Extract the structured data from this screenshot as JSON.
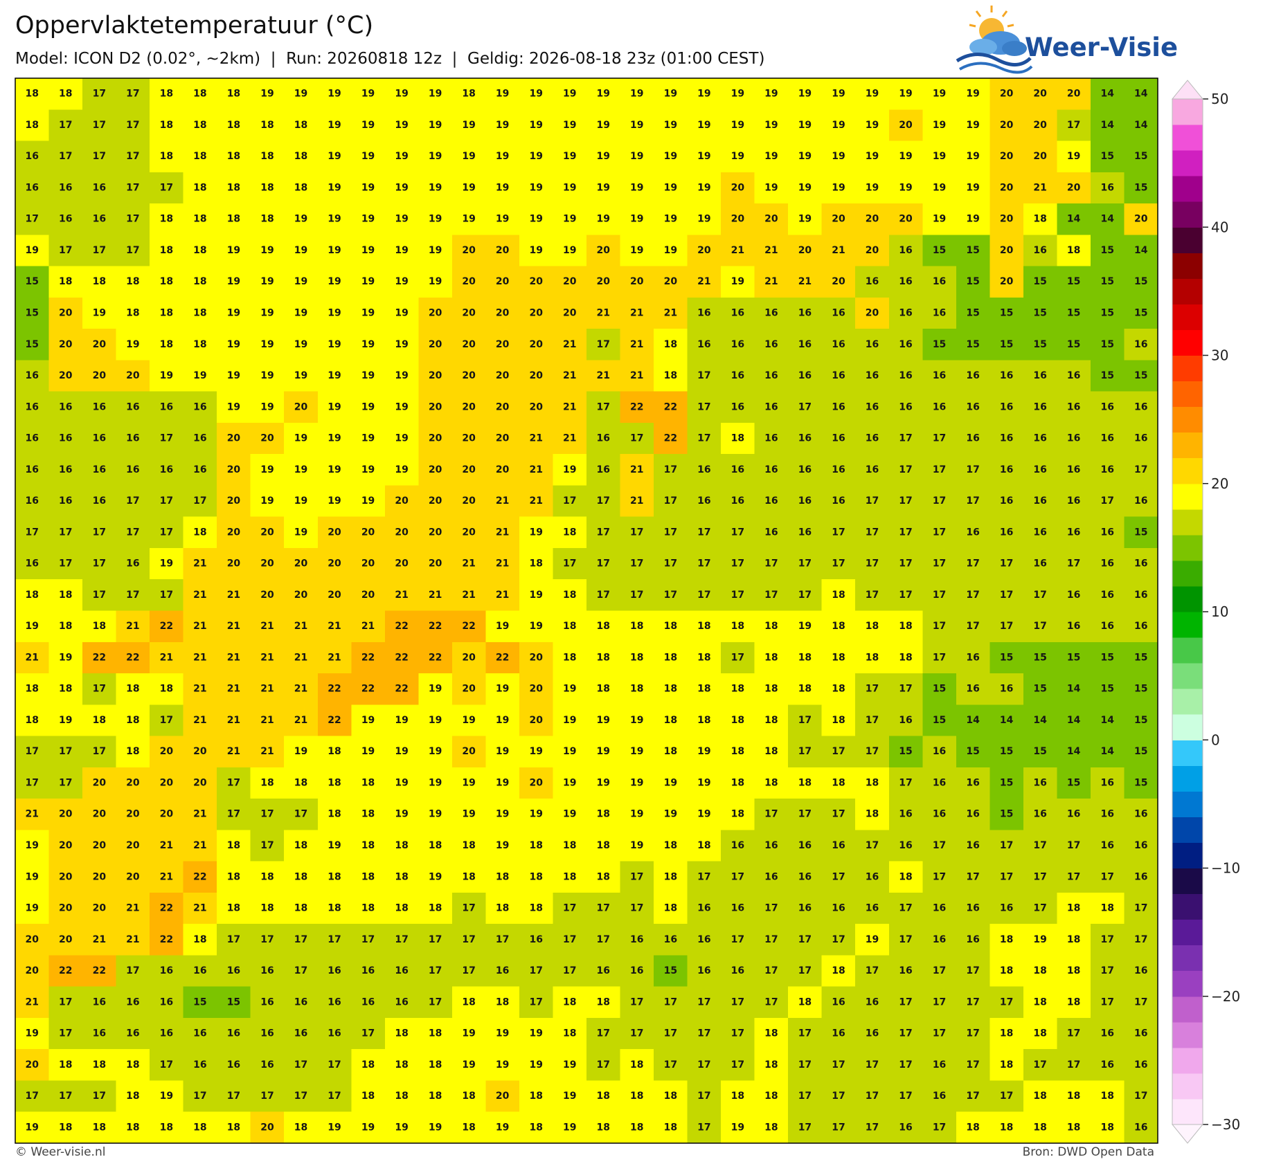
{
  "header": {
    "title": "Oppervlaktetemperatuur (°C)",
    "subtitle": "Model: ICON D2 (0.02°, ~2km)  |  Run: 20260818 12z  |  Geldig: 2026-08-18 23z (01:00 CEST)",
    "logo": "Weer-Visie",
    "credit": "© Weer-visie.nl",
    "source": "Bron: DWD Open Data"
  },
  "map": {
    "rows": [
      [
        18,
        18,
        17,
        17,
        18,
        18,
        18,
        19,
        19,
        19,
        19,
        19,
        19,
        18,
        19,
        19,
        19,
        19,
        19,
        19,
        19,
        19,
        19,
        19,
        19,
        19,
        19,
        19,
        19,
        20,
        20,
        20,
        14,
        14
      ],
      [
        18,
        17,
        17,
        17,
        18,
        18,
        18,
        18,
        18,
        19,
        19,
        19,
        19,
        19,
        19,
        19,
        19,
        19,
        19,
        19,
        19,
        19,
        19,
        19,
        19,
        19,
        20,
        19,
        19,
        20,
        20,
        17,
        14,
        14
      ],
      [
        16,
        17,
        17,
        17,
        18,
        18,
        18,
        18,
        18,
        19,
        19,
        19,
        19,
        19,
        19,
        19,
        19,
        19,
        19,
        19,
        19,
        19,
        19,
        19,
        19,
        19,
        19,
        19,
        19,
        20,
        20,
        19,
        15,
        15
      ],
      [
        16,
        16,
        16,
        17,
        17,
        18,
        18,
        18,
        18,
        19,
        19,
        19,
        19,
        19,
        19,
        19,
        19,
        19,
        19,
        19,
        19,
        20,
        19,
        19,
        19,
        19,
        19,
        19,
        19,
        20,
        21,
        20,
        16,
        15
      ],
      [
        17,
        16,
        16,
        17,
        18,
        18,
        18,
        18,
        19,
        19,
        19,
        19,
        19,
        19,
        19,
        19,
        19,
        19,
        19,
        19,
        19,
        20,
        20,
        19,
        20,
        20,
        20,
        19,
        19,
        20,
        18,
        14,
        14,
        20
      ],
      [
        19,
        17,
        17,
        17,
        18,
        18,
        19,
        19,
        19,
        19,
        19,
        19,
        19,
        20,
        20,
        19,
        19,
        20,
        19,
        19,
        20,
        21,
        21,
        20,
        21,
        20,
        16,
        15,
        15,
        20,
        16,
        18,
        15,
        14
      ],
      [
        15,
        18,
        18,
        18,
        18,
        18,
        19,
        19,
        19,
        19,
        19,
        19,
        19,
        20,
        20,
        20,
        20,
        20,
        20,
        20,
        21,
        19,
        21,
        21,
        20,
        16,
        16,
        16,
        15,
        20,
        15,
        15,
        15,
        15
      ],
      [
        15,
        20,
        19,
        18,
        18,
        18,
        19,
        19,
        19,
        19,
        19,
        19,
        20,
        20,
        20,
        20,
        20,
        21,
        21,
        21,
        16,
        16,
        16,
        16,
        16,
        20,
        16,
        16,
        15,
        15,
        15,
        15,
        15,
        15
      ],
      [
        15,
        20,
        20,
        19,
        18,
        18,
        19,
        19,
        19,
        19,
        19,
        19,
        20,
        20,
        20,
        20,
        21,
        17,
        21,
        18,
        16,
        16,
        16,
        16,
        16,
        16,
        16,
        15,
        15,
        15,
        15,
        15,
        15,
        16
      ],
      [
        16,
        20,
        20,
        20,
        19,
        19,
        19,
        19,
        19,
        19,
        19,
        19,
        20,
        20,
        20,
        20,
        21,
        21,
        21,
        18,
        17,
        16,
        16,
        16,
        16,
        16,
        16,
        16,
        16,
        16,
        16,
        16,
        15,
        15
      ],
      [
        16,
        16,
        16,
        16,
        16,
        16,
        19,
        19,
        20,
        19,
        19,
        19,
        20,
        20,
        20,
        20,
        21,
        17,
        22,
        22,
        17,
        16,
        16,
        17,
        16,
        16,
        16,
        16,
        16,
        16,
        16,
        16,
        16,
        16
      ],
      [
        16,
        16,
        16,
        16,
        17,
        16,
        20,
        20,
        19,
        19,
        19,
        19,
        20,
        20,
        20,
        21,
        21,
        16,
        17,
        22,
        17,
        18,
        16,
        16,
        16,
        16,
        17,
        17,
        16,
        16,
        16,
        16,
        16,
        16
      ],
      [
        16,
        16,
        16,
        16,
        16,
        16,
        20,
        19,
        19,
        19,
        19,
        19,
        20,
        20,
        20,
        21,
        19,
        16,
        21,
        17,
        16,
        16,
        16,
        16,
        16,
        16,
        17,
        17,
        17,
        16,
        16,
        16,
        16,
        17
      ],
      [
        16,
        16,
        16,
        17,
        17,
        17,
        20,
        19,
        19,
        19,
        19,
        20,
        20,
        20,
        21,
        21,
        17,
        17,
        21,
        17,
        16,
        16,
        16,
        16,
        16,
        17,
        17,
        17,
        17,
        16,
        16,
        16,
        17,
        16
      ],
      [
        17,
        17,
        17,
        17,
        17,
        18,
        20,
        20,
        19,
        20,
        20,
        20,
        20,
        20,
        21,
        19,
        18,
        17,
        17,
        17,
        17,
        17,
        16,
        16,
        17,
        17,
        17,
        17,
        16,
        16,
        16,
        16,
        16,
        15
      ],
      [
        16,
        17,
        17,
        16,
        19,
        21,
        20,
        20,
        20,
        20,
        20,
        20,
        20,
        21,
        21,
        18,
        17,
        17,
        17,
        17,
        17,
        17,
        17,
        17,
        17,
        17,
        17,
        17,
        17,
        17,
        16,
        17,
        16,
        16
      ],
      [
        18,
        18,
        17,
        17,
        17,
        21,
        21,
        20,
        20,
        20,
        20,
        21,
        21,
        21,
        21,
        19,
        18,
        17,
        17,
        17,
        17,
        17,
        17,
        17,
        18,
        17,
        17,
        17,
        17,
        17,
        17,
        16,
        16,
        16
      ],
      [
        19,
        18,
        18,
        21,
        22,
        21,
        21,
        21,
        21,
        21,
        21,
        22,
        22,
        22,
        19,
        19,
        18,
        18,
        18,
        18,
        18,
        18,
        18,
        19,
        18,
        18,
        18,
        17,
        17,
        17,
        17,
        16,
        16,
        16
      ],
      [
        21,
        19,
        22,
        22,
        21,
        21,
        21,
        21,
        21,
        21,
        22,
        22,
        22,
        20,
        22,
        20,
        18,
        18,
        18,
        18,
        18,
        17,
        18,
        18,
        18,
        18,
        18,
        17,
        16,
        15,
        15,
        15,
        15,
        15
      ],
      [
        18,
        18,
        17,
        18,
        18,
        21,
        21,
        21,
        21,
        22,
        22,
        22,
        19,
        20,
        19,
        20,
        19,
        18,
        18,
        18,
        18,
        18,
        18,
        18,
        18,
        17,
        17,
        15,
        16,
        16,
        15,
        14,
        15,
        15
      ],
      [
        18,
        19,
        18,
        18,
        17,
        21,
        21,
        21,
        21,
        22,
        19,
        19,
        19,
        19,
        19,
        20,
        19,
        19,
        19,
        18,
        18,
        18,
        18,
        17,
        18,
        17,
        16,
        15,
        14,
        14,
        14,
        14,
        14,
        15
      ],
      [
        17,
        17,
        17,
        18,
        20,
        20,
        21,
        21,
        19,
        18,
        19,
        19,
        19,
        20,
        19,
        19,
        19,
        19,
        19,
        18,
        19,
        18,
        18,
        17,
        17,
        17,
        15,
        16,
        15,
        15,
        15,
        14,
        14,
        15
      ],
      [
        17,
        17,
        20,
        20,
        20,
        20,
        17,
        18,
        18,
        18,
        18,
        19,
        19,
        19,
        19,
        20,
        19,
        19,
        19,
        19,
        19,
        18,
        18,
        18,
        18,
        18,
        17,
        16,
        16,
        15,
        16,
        15,
        16,
        15
      ],
      [
        21,
        20,
        20,
        20,
        20,
        21,
        17,
        17,
        17,
        18,
        18,
        19,
        19,
        19,
        19,
        19,
        19,
        18,
        19,
        19,
        19,
        18,
        17,
        17,
        17,
        18,
        16,
        16,
        16,
        15,
        16,
        16,
        16,
        16
      ],
      [
        19,
        20,
        20,
        20,
        21,
        21,
        18,
        17,
        18,
        19,
        18,
        18,
        18,
        18,
        19,
        18,
        18,
        18,
        19,
        18,
        18,
        16,
        16,
        16,
        16,
        17,
        16,
        17,
        16,
        17,
        17,
        17,
        16,
        16
      ],
      [
        19,
        20,
        20,
        20,
        21,
        22,
        18,
        18,
        18,
        18,
        18,
        18,
        19,
        18,
        18,
        18,
        18,
        18,
        17,
        18,
        17,
        17,
        16,
        16,
        17,
        16,
        18,
        17,
        17,
        17,
        17,
        17,
        17,
        16
      ],
      [
        19,
        20,
        20,
        21,
        22,
        21,
        18,
        18,
        18,
        18,
        18,
        18,
        18,
        17,
        18,
        18,
        17,
        17,
        17,
        18,
        16,
        16,
        17,
        16,
        16,
        16,
        17,
        16,
        16,
        16,
        17,
        18,
        18,
        17
      ],
      [
        20,
        20,
        21,
        21,
        22,
        18,
        17,
        17,
        17,
        17,
        17,
        17,
        17,
        17,
        17,
        16,
        17,
        17,
        16,
        16,
        16,
        17,
        17,
        17,
        17,
        19,
        17,
        16,
        16,
        18,
        19,
        18,
        17,
        17
      ],
      [
        20,
        22,
        22,
        17,
        16,
        16,
        16,
        16,
        17,
        16,
        16,
        16,
        17,
        17,
        16,
        17,
        17,
        16,
        16,
        15,
        16,
        16,
        17,
        17,
        18,
        17,
        16,
        17,
        17,
        18,
        18,
        18,
        17,
        16
      ],
      [
        21,
        17,
        16,
        16,
        16,
        15,
        15,
        16,
        16,
        16,
        16,
        16,
        17,
        18,
        18,
        17,
        18,
        18,
        17,
        17,
        17,
        17,
        17,
        18,
        16,
        16,
        17,
        17,
        17,
        17,
        18,
        18,
        17,
        17
      ],
      [
        19,
        17,
        16,
        16,
        16,
        16,
        16,
        16,
        16,
        16,
        17,
        18,
        18,
        19,
        19,
        19,
        18,
        17,
        17,
        17,
        17,
        17,
        18,
        17,
        16,
        16,
        17,
        17,
        17,
        18,
        18,
        17,
        16,
        16
      ],
      [
        20,
        18,
        18,
        18,
        17,
        16,
        16,
        16,
        17,
        17,
        18,
        18,
        18,
        19,
        19,
        19,
        19,
        17,
        18,
        17,
        17,
        17,
        18,
        17,
        17,
        17,
        17,
        16,
        17,
        18,
        17,
        17,
        16,
        16
      ],
      [
        17,
        17,
        17,
        18,
        19,
        17,
        17,
        17,
        17,
        17,
        18,
        18,
        18,
        18,
        20,
        18,
        19,
        18,
        18,
        18,
        17,
        18,
        18,
        17,
        17,
        17,
        17,
        16,
        17,
        17,
        18,
        18,
        18,
        17
      ],
      [
        19,
        18,
        18,
        18,
        18,
        18,
        18,
        20,
        18,
        19,
        19,
        19,
        19,
        18,
        19,
        18,
        19,
        18,
        18,
        18,
        17,
        19,
        18,
        17,
        17,
        17,
        16,
        17,
        18,
        18,
        18,
        18,
        18,
        16
      ]
    ]
  },
  "colorbar": {
    "lim": [
      -30,
      50
    ],
    "ticks": [
      {
        "value": -30,
        "label": "−30"
      },
      {
        "value": -20,
        "label": "−20"
      },
      {
        "value": -10,
        "label": "−10"
      },
      0,
      10,
      20,
      30,
      40,
      50
    ],
    "colors": [
      "#fde6fb",
      "#f8c8f4",
      "#f0a8ec",
      "#d880dc",
      "#c060cc",
      "#9a40c0",
      "#7a30b0",
      "#5a1a98",
      "#3a1070",
      "#1a0a48",
      "#001e82",
      "#0046aa",
      "#0078d2",
      "#00a0e6",
      "#34c8fa",
      "#ccffe0",
      "#a8f0a8",
      "#7ade7a",
      "#48c848",
      "#00b400",
      "#009400",
      "#3aac00",
      "#7cc400",
      "#c4d800",
      "#ffff00",
      "#ffd800",
      "#ffb400",
      "#ff8c00",
      "#ff6400",
      "#ff3c00",
      "#ff0000",
      "#dc0000",
      "#b40000",
      "#8c0000",
      "#4a0030",
      "#780060",
      "#a0008c",
      "#d020c0",
      "#f050d8",
      "#f8a8e0"
    ]
  }
}
